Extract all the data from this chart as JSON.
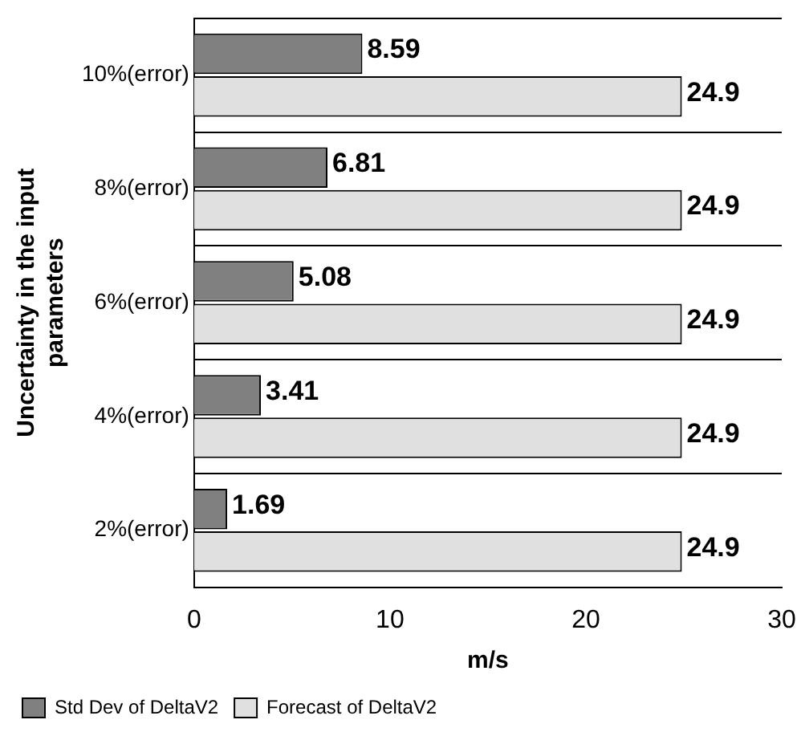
{
  "chart_data": {
    "type": "bar",
    "orientation": "horizontal",
    "categories": [
      "10%(error)",
      "8%(error)",
      "6%(error)",
      "4%(error)",
      "2%(error)"
    ],
    "series": [
      {
        "name": "Std Dev of DeltaV2",
        "color": "#808080",
        "values": [
          8.59,
          6.81,
          5.08,
          3.41,
          1.69
        ]
      },
      {
        "name": "Forecast of DeltaV2",
        "color": "#e0e0e0",
        "values": [
          24.9,
          24.9,
          24.9,
          24.9,
          24.9
        ]
      }
    ],
    "xlim": [
      0,
      30
    ],
    "xticks": [
      0,
      10,
      20,
      30
    ],
    "xlabel": "m/s",
    "ylabel": "Uncertainty in the input parameters",
    "grid": "y",
    "legend": "bottom left",
    "data_labels": true
  }
}
